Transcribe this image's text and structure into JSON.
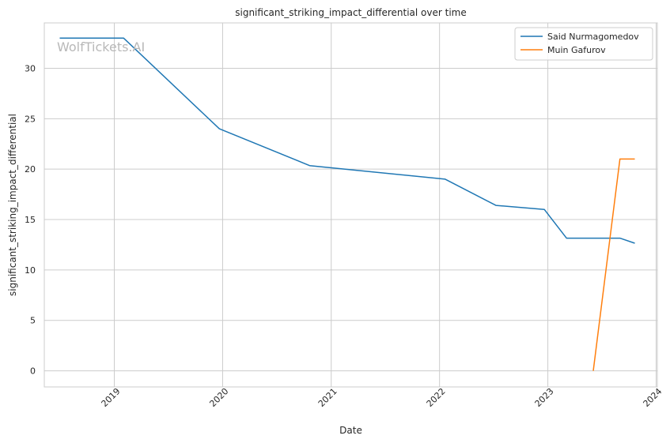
{
  "chart_data": {
    "type": "line",
    "title": "significant_striking_impact_differential over time",
    "xlabel": "Date",
    "ylabel": "significant_striking_impact_differential",
    "watermark": "WolfTickets.AI",
    "x_ticks": [
      "2019",
      "2020",
      "2021",
      "2022",
      "2023",
      "2024"
    ],
    "y_ticks": [
      "0",
      "5",
      "10",
      "15",
      "20",
      "25",
      "30"
    ],
    "xlim": [
      "2018-05-10",
      "2024-01-05"
    ],
    "ylim": [
      -1.6,
      34.5
    ],
    "grid": true,
    "legend_position": "top-right",
    "series": [
      {
        "name": "Said Nurmagomedov",
        "color": "#1f77b4",
        "points": [
          {
            "x": "2018-07-01",
            "y": 33.0
          },
          {
            "x": "2019-02-01",
            "y": 33.0
          },
          {
            "x": "2019-12-21",
            "y": 24.0
          },
          {
            "x": "2020-10-20",
            "y": 20.35
          },
          {
            "x": "2022-01-20",
            "y": 19.0
          },
          {
            "x": "2022-07-10",
            "y": 16.4
          },
          {
            "x": "2022-12-20",
            "y": 16.0
          },
          {
            "x": "2023-03-05",
            "y": 13.15
          },
          {
            "x": "2023-09-01",
            "y": 13.15
          },
          {
            "x": "2023-10-21",
            "y": 12.65
          }
        ]
      },
      {
        "name": "Muin Gafurov",
        "color": "#ff7f0e",
        "points": [
          {
            "x": "2023-06-03",
            "y": 0.0
          },
          {
            "x": "2023-09-01",
            "y": 21.0
          },
          {
            "x": "2023-10-21",
            "y": 21.0
          }
        ]
      }
    ]
  }
}
